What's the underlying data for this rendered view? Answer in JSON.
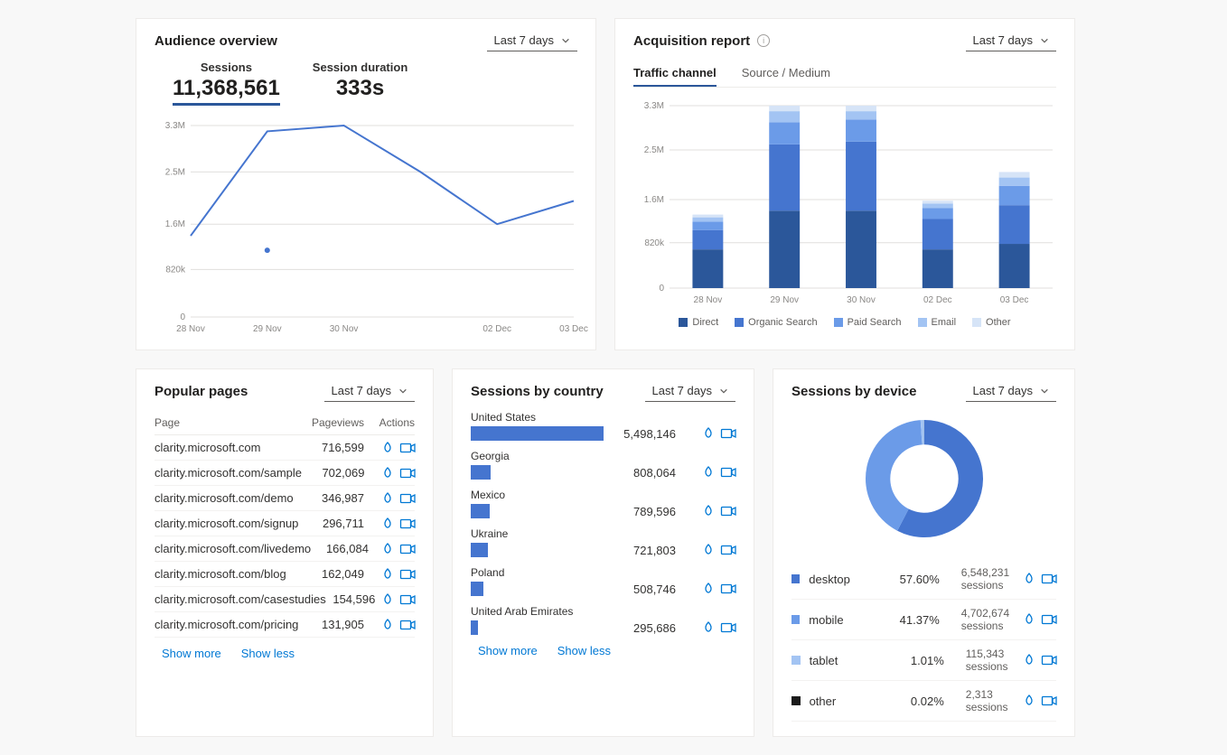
{
  "dropdown_label": "Last 7 days",
  "show_more": "Show more",
  "show_less": "Show less",
  "actions_heatmap_icon": "heatmap-icon",
  "actions_recordings_icon": "recordings-icon",
  "colors": {
    "line": "#4575cf",
    "bar": "#4575cf",
    "grid": "#e1dfdd",
    "axis_text": "#8a8886"
  },
  "audience": {
    "title": "Audience overview",
    "kpis": [
      {
        "label": "Sessions",
        "value": "11,368,561",
        "active": true
      },
      {
        "label": "Session duration",
        "value": "333s",
        "active": false
      }
    ],
    "chart": {
      "type": "line",
      "ylim": [
        0,
        3300000
      ],
      "yticks": [
        0,
        820000,
        1600000,
        2500000,
        3300000
      ],
      "ytick_labels": [
        "0",
        "820k",
        "1.6M",
        "2.5M",
        "3.3M"
      ],
      "x_labels": [
        "28 Nov",
        "29 Nov",
        "30 Nov",
        "",
        "02 Dec",
        "03 Dec"
      ],
      "values": [
        1400000,
        3200000,
        3300000,
        2500000,
        1600000,
        2000000
      ],
      "line_color": "#4575cf",
      "line_width": 2,
      "point_x_index": 1,
      "point_y_value": 1150000,
      "point_color": "#4575cf"
    }
  },
  "acquisition": {
    "title": "Acquisition report",
    "tabs": [
      "Traffic channel",
      "Source / Medium"
    ],
    "active_tab": 0,
    "chart": {
      "type": "stacked-bar",
      "ylim": [
        0,
        3300000
      ],
      "yticks": [
        0,
        820000,
        1600000,
        2500000,
        3300000
      ],
      "ytick_labels": [
        "0",
        "820k",
        "1.6M",
        "2.5M",
        "3.3M"
      ],
      "categories": [
        "28 Nov",
        "29 Nov",
        "30 Nov",
        "02 Dec",
        "03 Dec"
      ],
      "series": [
        {
          "name": "Direct",
          "color": "#2b579a",
          "values": [
            700000,
            1400000,
            1400000,
            700000,
            800000
          ]
        },
        {
          "name": "Organic Search",
          "color": "#4575cf",
          "values": [
            350000,
            1200000,
            1250000,
            550000,
            700000
          ]
        },
        {
          "name": "Paid Search",
          "color": "#6b9be8",
          "values": [
            150000,
            400000,
            400000,
            200000,
            350000
          ]
        },
        {
          "name": "Email",
          "color": "#a3c4f3",
          "values": [
            80000,
            200000,
            150000,
            80000,
            150000
          ]
        },
        {
          "name": "Other",
          "color": "#d6e4f7",
          "values": [
            50000,
            100000,
            100000,
            50000,
            100000
          ]
        }
      ],
      "bar_width_ratio": 0.4
    }
  },
  "pages": {
    "title": "Popular pages",
    "columns": [
      "Page",
      "Pageviews",
      "Actions"
    ],
    "rows": [
      {
        "page": "clarity.microsoft.com",
        "views": "716,599"
      },
      {
        "page": "clarity.microsoft.com/sample",
        "views": "702,069"
      },
      {
        "page": "clarity.microsoft.com/demo",
        "views": "346,987"
      },
      {
        "page": "clarity.microsoft.com/signup",
        "views": "296,711"
      },
      {
        "page": "clarity.microsoft.com/livedemo",
        "views": "166,084"
      },
      {
        "page": "clarity.microsoft.com/blog",
        "views": "162,049"
      },
      {
        "page": "clarity.microsoft.com/casestudies",
        "views": "154,596"
      },
      {
        "page": "clarity.microsoft.com/pricing",
        "views": "131,905"
      }
    ]
  },
  "countries": {
    "title": "Sessions by country",
    "max": 5498146,
    "bar_color": "#4575cf",
    "rows": [
      {
        "name": "United States",
        "value": 5498146,
        "display": "5,498,146"
      },
      {
        "name": "Georgia",
        "value": 808064,
        "display": "808,064"
      },
      {
        "name": "Mexico",
        "value": 789596,
        "display": "789,596"
      },
      {
        "name": "Ukraine",
        "value": 721803,
        "display": "721,803"
      },
      {
        "name": "Poland",
        "value": 508746,
        "display": "508,746"
      },
      {
        "name": "United Arab Emirates",
        "value": 295686,
        "display": "295,686"
      }
    ]
  },
  "devices": {
    "title": "Sessions by device",
    "donut": {
      "inner_ratio": 0.58,
      "slices": [
        {
          "name": "desktop",
          "pct": 57.6,
          "color": "#4575cf"
        },
        {
          "name": "mobile",
          "pct": 41.37,
          "color": "#6b9be8"
        },
        {
          "name": "tablet",
          "pct": 1.01,
          "color": "#a3c4f3"
        },
        {
          "name": "other",
          "pct": 0.02,
          "color": "#1b1b1b"
        }
      ]
    },
    "rows": [
      {
        "name": "desktop",
        "pct": "57.60%",
        "sessions": "6,548,231 sessions",
        "color": "#4575cf"
      },
      {
        "name": "mobile",
        "pct": "41.37%",
        "sessions": "4,702,674 sessions",
        "color": "#6b9be8"
      },
      {
        "name": "tablet",
        "pct": "1.01%",
        "sessions": "115,343 sessions",
        "color": "#a3c4f3"
      },
      {
        "name": "other",
        "pct": "0.02%",
        "sessions": "2,313 sessions",
        "color": "#1b1b1b"
      }
    ]
  }
}
